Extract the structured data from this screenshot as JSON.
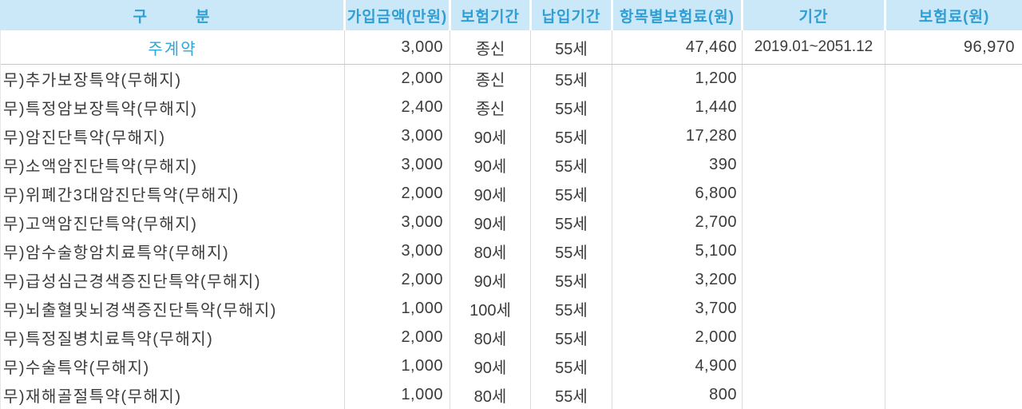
{
  "colors": {
    "header_bg": "#cbe8f8",
    "header_text": "#2f9ed4",
    "main_row_text": "#2fa6d9",
    "body_text": "#3b3b3b",
    "grid_line": "#d9d9d9",
    "main_row_divider": "#c6c6c6"
  },
  "table": {
    "columns": [
      {
        "key": "category",
        "label": "구　　　분"
      },
      {
        "key": "amount",
        "label": "가입금액(만원)"
      },
      {
        "key": "ins_period",
        "label": "보험기간"
      },
      {
        "key": "pay_period",
        "label": "납입기간"
      },
      {
        "key": "item_premium",
        "label": "항목별보험료(원)"
      },
      {
        "key": "period",
        "label": "기간"
      },
      {
        "key": "premium",
        "label": "보험료(원)"
      }
    ],
    "rows": [
      {
        "type": "main",
        "category": "주계약",
        "amount": "3,000",
        "ins_period": "종신",
        "pay_period": "55세",
        "item_premium": "47,460",
        "period": "2019.01~2051.12",
        "premium": "96,970"
      },
      {
        "type": "rider",
        "category": "무)추가보장특약(무해지)",
        "amount": "2,000",
        "ins_period": "종신",
        "pay_period": "55세",
        "item_premium": "1,200",
        "period": "",
        "premium": ""
      },
      {
        "type": "rider",
        "category": "무)특정암보장특약(무해지)",
        "amount": "2,400",
        "ins_period": "종신",
        "pay_period": "55세",
        "item_premium": "1,440",
        "period": "",
        "premium": ""
      },
      {
        "type": "rider",
        "category": "무)암진단특약(무해지)",
        "amount": "3,000",
        "ins_period": "90세",
        "pay_period": "55세",
        "item_premium": "17,280",
        "period": "",
        "premium": ""
      },
      {
        "type": "rider",
        "category": "무)소액암진단특약(무해지)",
        "amount": "3,000",
        "ins_period": "90세",
        "pay_period": "55세",
        "item_premium": "390",
        "period": "",
        "premium": ""
      },
      {
        "type": "rider",
        "category": "무)위폐간3대암진단특약(무해지)",
        "amount": "2,000",
        "ins_period": "90세",
        "pay_period": "55세",
        "item_premium": "6,800",
        "period": "",
        "premium": ""
      },
      {
        "type": "rider",
        "category": "무)고액암진단특약(무해지)",
        "amount": "3,000",
        "ins_period": "90세",
        "pay_period": "55세",
        "item_premium": "2,700",
        "period": "",
        "premium": ""
      },
      {
        "type": "rider",
        "category": "무)암수술항암치료특약(무해지)",
        "amount": "3,000",
        "ins_period": "80세",
        "pay_period": "55세",
        "item_premium": "5,100",
        "period": "",
        "premium": ""
      },
      {
        "type": "rider",
        "category": "무)급성심근경색증진단특약(무해지)",
        "amount": "2,000",
        "ins_period": "90세",
        "pay_period": "55세",
        "item_premium": "3,200",
        "period": "",
        "premium": ""
      },
      {
        "type": "rider",
        "category": "무)뇌출혈및뇌경색증진단특약(무해지)",
        "amount": "1,000",
        "ins_period": "100세",
        "pay_period": "55세",
        "item_premium": "3,700",
        "period": "",
        "premium": ""
      },
      {
        "type": "rider",
        "category": "무)특정질병치료특약(무해지)",
        "amount": "2,000",
        "ins_period": "80세",
        "pay_period": "55세",
        "item_premium": "2,000",
        "period": "",
        "premium": ""
      },
      {
        "type": "rider",
        "category": "무)수술특약(무해지)",
        "amount": "1,000",
        "ins_period": "90세",
        "pay_period": "55세",
        "item_premium": "4,900",
        "period": "",
        "premium": ""
      },
      {
        "type": "rider",
        "category": "무)재해골절특약(무해지)",
        "amount": "1,000",
        "ins_period": "80세",
        "pay_period": "55세",
        "item_premium": "800",
        "period": "",
        "premium": ""
      }
    ]
  }
}
